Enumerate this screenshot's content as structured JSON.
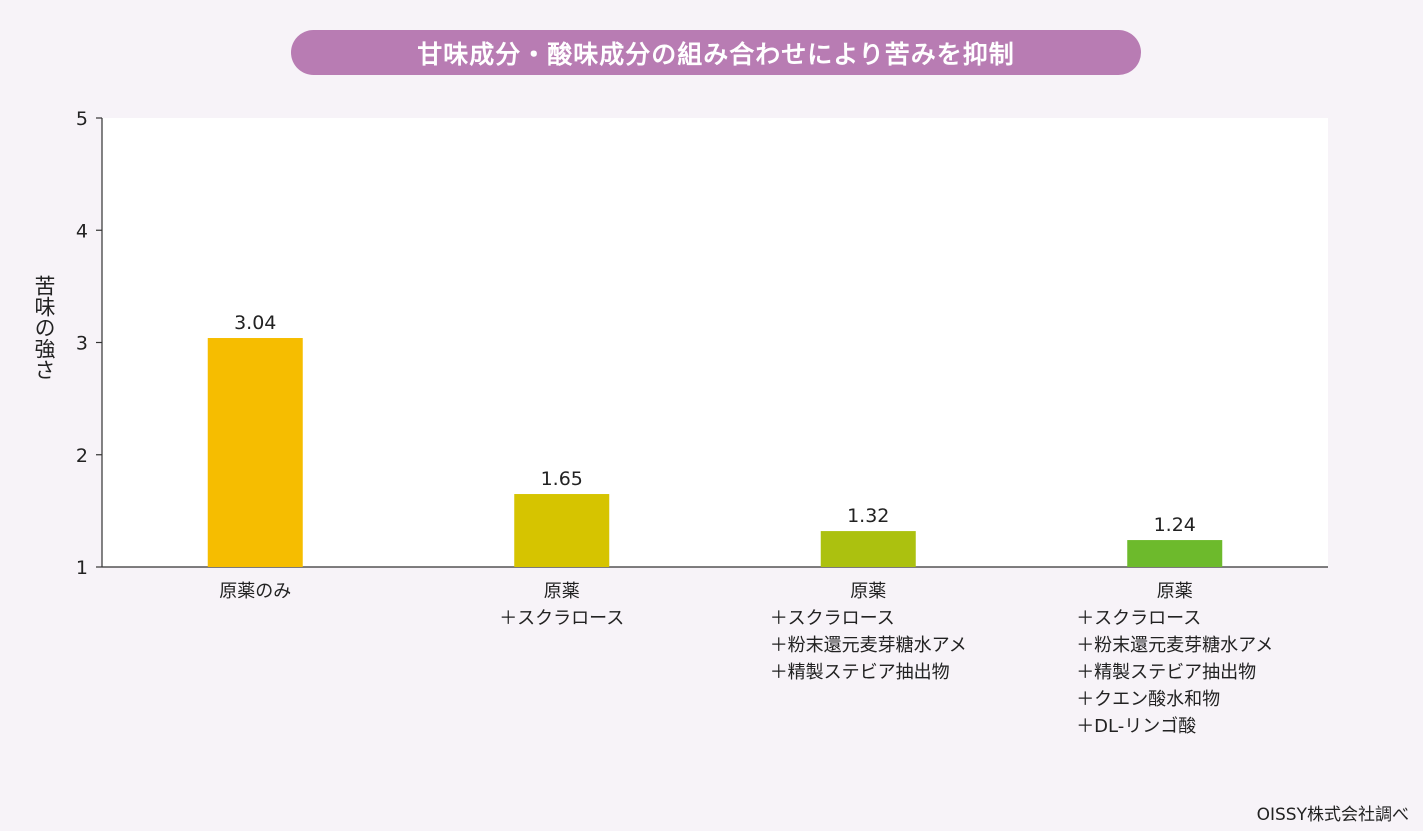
{
  "chart_data": {
    "type": "bar",
    "title": "甘味成分・酸味成分の組み合わせにより苦みを抑制",
    "ylabel": "苦味の強さ",
    "xlabel": "",
    "ylim": [
      1,
      5
    ],
    "yticks": [
      1,
      2,
      3,
      4,
      5
    ],
    "grid": false,
    "categories": [
      {
        "head": "原薬のみ",
        "additions": []
      },
      {
        "head": "原薬",
        "additions": [
          "＋スクラロース"
        ]
      },
      {
        "head": "原薬",
        "additions": [
          "＋スクラロース",
          "＋粉末還元麦芽糖水アメ",
          "＋精製ステビア抽出物"
        ]
      },
      {
        "head": "原薬",
        "additions": [
          "＋スクラロース",
          "＋粉末還元麦芽糖水アメ",
          "＋精製ステビア抽出物",
          "＋クエン酸水和物",
          "＋DL-リンゴ酸"
        ]
      }
    ],
    "values": [
      3.04,
      1.65,
      1.32,
      1.24
    ],
    "data_labels": [
      "3.04",
      "1.65",
      "1.32",
      "1.24"
    ],
    "bar_colors": [
      "#f6bd00",
      "#d6c400",
      "#acc10f",
      "#6dba2c"
    ]
  },
  "colors": {
    "title_bg": "#b87cb3",
    "background": "#f7f3f8",
    "plot_bg": "#ffffff",
    "axis": "#333333"
  },
  "source": "OISSY株式会社調べ"
}
